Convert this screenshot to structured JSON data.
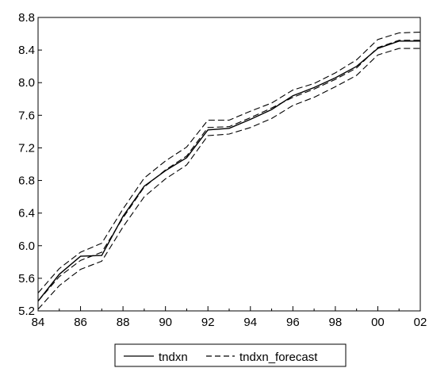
{
  "chart_data": {
    "type": "line",
    "x": [
      "84",
      "85",
      "86",
      "87",
      "88",
      "89",
      "90",
      "91",
      "92",
      "93",
      "94",
      "95",
      "96",
      "97",
      "98",
      "99",
      "00",
      "01",
      "02"
    ],
    "xticks": [
      "84",
      "86",
      "88",
      "90",
      "92",
      "94",
      "96",
      "98",
      "00",
      "02"
    ],
    "yticks": [
      "5.2",
      "5.6",
      "6.0",
      "6.4",
      "6.8",
      "7.2",
      "7.6",
      "8.0",
      "8.4",
      "8.8"
    ],
    "ylim": [
      5.2,
      8.8
    ],
    "grid": false,
    "legend_position": "bottom-center",
    "series": [
      {
        "name": "tndxn",
        "style": "solid",
        "values": [
          5.32,
          5.65,
          5.87,
          5.88,
          6.36,
          6.73,
          6.92,
          7.08,
          7.42,
          7.44,
          7.55,
          7.67,
          7.84,
          7.94,
          8.06,
          8.2,
          8.42,
          8.51,
          8.51
        ]
      },
      {
        "name": "tndxn_forecast",
        "style": "dashed",
        "values": [
          5.32,
          5.62,
          5.82,
          5.92,
          6.34,
          6.72,
          6.93,
          7.1,
          7.45,
          7.46,
          7.57,
          7.69,
          7.82,
          7.92,
          8.04,
          8.18,
          8.43,
          8.52,
          8.52
        ],
        "upper": [
          5.42,
          5.72,
          5.92,
          6.03,
          6.45,
          6.83,
          7.04,
          7.21,
          7.54,
          7.54,
          7.65,
          7.75,
          7.91,
          7.99,
          8.12,
          8.28,
          8.53,
          8.61,
          8.62
        ],
        "lower": [
          5.22,
          5.51,
          5.71,
          5.81,
          6.23,
          6.6,
          6.82,
          6.99,
          7.35,
          7.37,
          7.45,
          7.56,
          7.72,
          7.82,
          7.95,
          8.09,
          8.34,
          8.42,
          8.42
        ]
      }
    ],
    "colors": {
      "line": "#000000",
      "background": "#ffffff"
    }
  }
}
